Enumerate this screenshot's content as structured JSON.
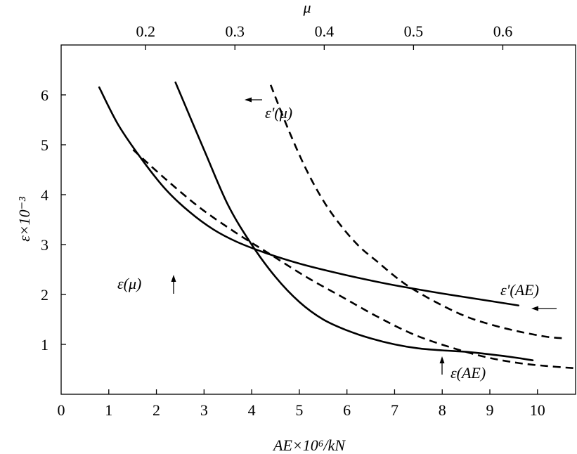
{
  "chart_data": {
    "type": "line",
    "title": "",
    "x_bottom": {
      "label": "AE×10⁶/kN",
      "range": [
        0,
        10.8
      ],
      "ticks": [
        0,
        1,
        2,
        3,
        4,
        5,
        6,
        7,
        8,
        9,
        10
      ]
    },
    "x_top": {
      "label": "μ",
      "range": [
        0.1054,
        0.6815
      ],
      "ticks": [
        0.2,
        0.3,
        0.4,
        0.5,
        0.6
      ]
    },
    "y": {
      "label": "ε×10⁻³",
      "range": [
        0,
        7.0
      ],
      "ticks": [
        1,
        2,
        3,
        4,
        5,
        6
      ]
    },
    "grid": false,
    "series": [
      {
        "name": "ε(AE)",
        "axis": "bottom",
        "style": "solid",
        "arrow": "up",
        "points": [
          [
            2.4,
            6.25
          ],
          [
            3.0,
            4.9
          ],
          [
            3.5,
            3.8
          ],
          [
            4.0,
            3.0
          ],
          [
            4.5,
            2.35
          ],
          [
            5.0,
            1.85
          ],
          [
            5.5,
            1.5
          ],
          [
            6.0,
            1.28
          ],
          [
            6.5,
            1.12
          ],
          [
            7.0,
            1.0
          ],
          [
            7.5,
            0.92
          ],
          [
            8.0,
            0.88
          ],
          [
            8.5,
            0.85
          ],
          [
            9.0,
            0.8
          ],
          [
            9.5,
            0.74
          ],
          [
            9.9,
            0.68
          ]
        ]
      },
      {
        "name": "ε'(AE)",
        "axis": "bottom",
        "style": "solid",
        "arrow": "left",
        "points": [
          [
            0.8,
            6.15
          ],
          [
            1.2,
            5.4
          ],
          [
            1.7,
            4.7
          ],
          [
            2.2,
            4.1
          ],
          [
            2.7,
            3.65
          ],
          [
            3.2,
            3.3
          ],
          [
            3.7,
            3.05
          ],
          [
            4.3,
            2.83
          ],
          [
            5.0,
            2.62
          ],
          [
            5.7,
            2.45
          ],
          [
            6.5,
            2.28
          ],
          [
            7.2,
            2.15
          ],
          [
            8.0,
            2.02
          ],
          [
            8.8,
            1.9
          ],
          [
            9.6,
            1.78
          ]
        ]
      },
      {
        "name": "ε(μ)",
        "axis": "top",
        "style": "dashed",
        "arrow": "up",
        "points": [
          [
            0.186,
            4.9
          ],
          [
            0.22,
            4.35
          ],
          [
            0.26,
            3.75
          ],
          [
            0.3,
            3.25
          ],
          [
            0.34,
            2.8
          ],
          [
            0.38,
            2.35
          ],
          [
            0.42,
            1.95
          ],
          [
            0.46,
            1.55
          ],
          [
            0.5,
            1.2
          ],
          [
            0.54,
            0.95
          ],
          [
            0.58,
            0.75
          ],
          [
            0.62,
            0.62
          ],
          [
            0.66,
            0.55
          ],
          [
            0.683,
            0.52
          ]
        ]
      },
      {
        "name": "ε'(μ)",
        "axis": "top",
        "style": "dashed",
        "arrow": "left",
        "points": [
          [
            0.34,
            6.2
          ],
          [
            0.36,
            5.3
          ],
          [
            0.38,
            4.5
          ],
          [
            0.4,
            3.85
          ],
          [
            0.42,
            3.35
          ],
          [
            0.44,
            2.95
          ],
          [
            0.46,
            2.65
          ],
          [
            0.48,
            2.35
          ],
          [
            0.5,
            2.1
          ],
          [
            0.53,
            1.8
          ],
          [
            0.56,
            1.55
          ],
          [
            0.59,
            1.38
          ],
          [
            0.62,
            1.25
          ],
          [
            0.65,
            1.15
          ],
          [
            0.67,
            1.12
          ]
        ]
      }
    ]
  }
}
